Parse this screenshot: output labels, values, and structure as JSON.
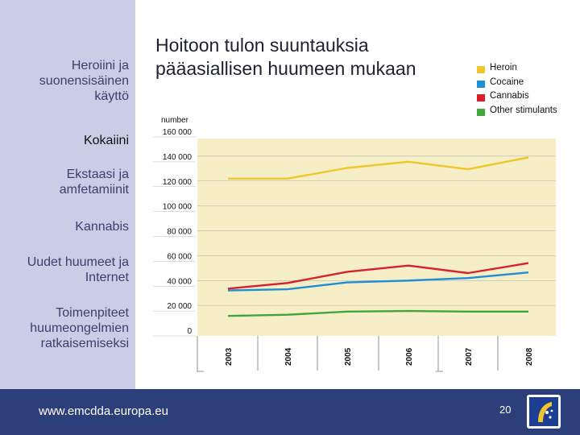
{
  "sidebar": {
    "items": [
      {
        "label": "Heroiini ja\nsuonensisäinen\nkäyttö",
        "active": false
      },
      {
        "label": "Kokaiini",
        "active": true
      },
      {
        "label": "Ekstaasi ja\namfetamiinit",
        "active": false
      },
      {
        "label": "Kannabis",
        "active": false
      },
      {
        "label": "Uudet huumeet ja\nInternet",
        "active": false
      },
      {
        "label": "Toimenpiteet\nhuumeongelmien\nratkaisemiseksi",
        "active": false
      }
    ]
  },
  "slide": {
    "title": "Hoitoon tulon suuntauksia\npääasiallisen huumeen mukaan"
  },
  "colors": {
    "plot_bg": "#f6eec6",
    "sidebar_bg": "#c9cde6",
    "footer_bg": "#2d3f7a",
    "heroin": "#f0c62a",
    "cocaine": "#1e8fd6",
    "cannabis": "#d81f2b",
    "other": "#3fa63c"
  },
  "chart_data": {
    "type": "line",
    "ylabel": "number",
    "x": [
      "2003",
      "2004",
      "2005",
      "2006",
      "2007",
      "2008"
    ],
    "ylim": [
      0,
      160000
    ],
    "yticks": [
      0,
      20000,
      40000,
      60000,
      80000,
      100000,
      120000,
      140000,
      160000
    ],
    "ytick_labels": [
      "0",
      "20 000",
      "40 000",
      "60 000",
      "80 000",
      "100 000",
      "120 000",
      "140 000",
      "160 000"
    ],
    "grid": true,
    "legend_position": "top-right",
    "series": [
      {
        "name": "Heroin",
        "color": "#f0c62a",
        "values": [
          122000,
          122000,
          130500,
          135500,
          129500,
          139000
        ]
      },
      {
        "name": "Cocaine",
        "color": "#1e8fd6",
        "values": [
          32000,
          33000,
          38500,
          40000,
          42000,
          46500
        ]
      },
      {
        "name": "Cannabis",
        "color": "#d81f2b",
        "values": [
          33500,
          38000,
          47000,
          52000,
          46000,
          54000
        ]
      },
      {
        "name": "Other stimulants",
        "color": "#3fa63c",
        "values": [
          11500,
          12500,
          15000,
          15500,
          15000,
          15000
        ]
      }
    ]
  },
  "footer": {
    "url": "www.emcdda.europa.eu",
    "page_number": "20"
  }
}
